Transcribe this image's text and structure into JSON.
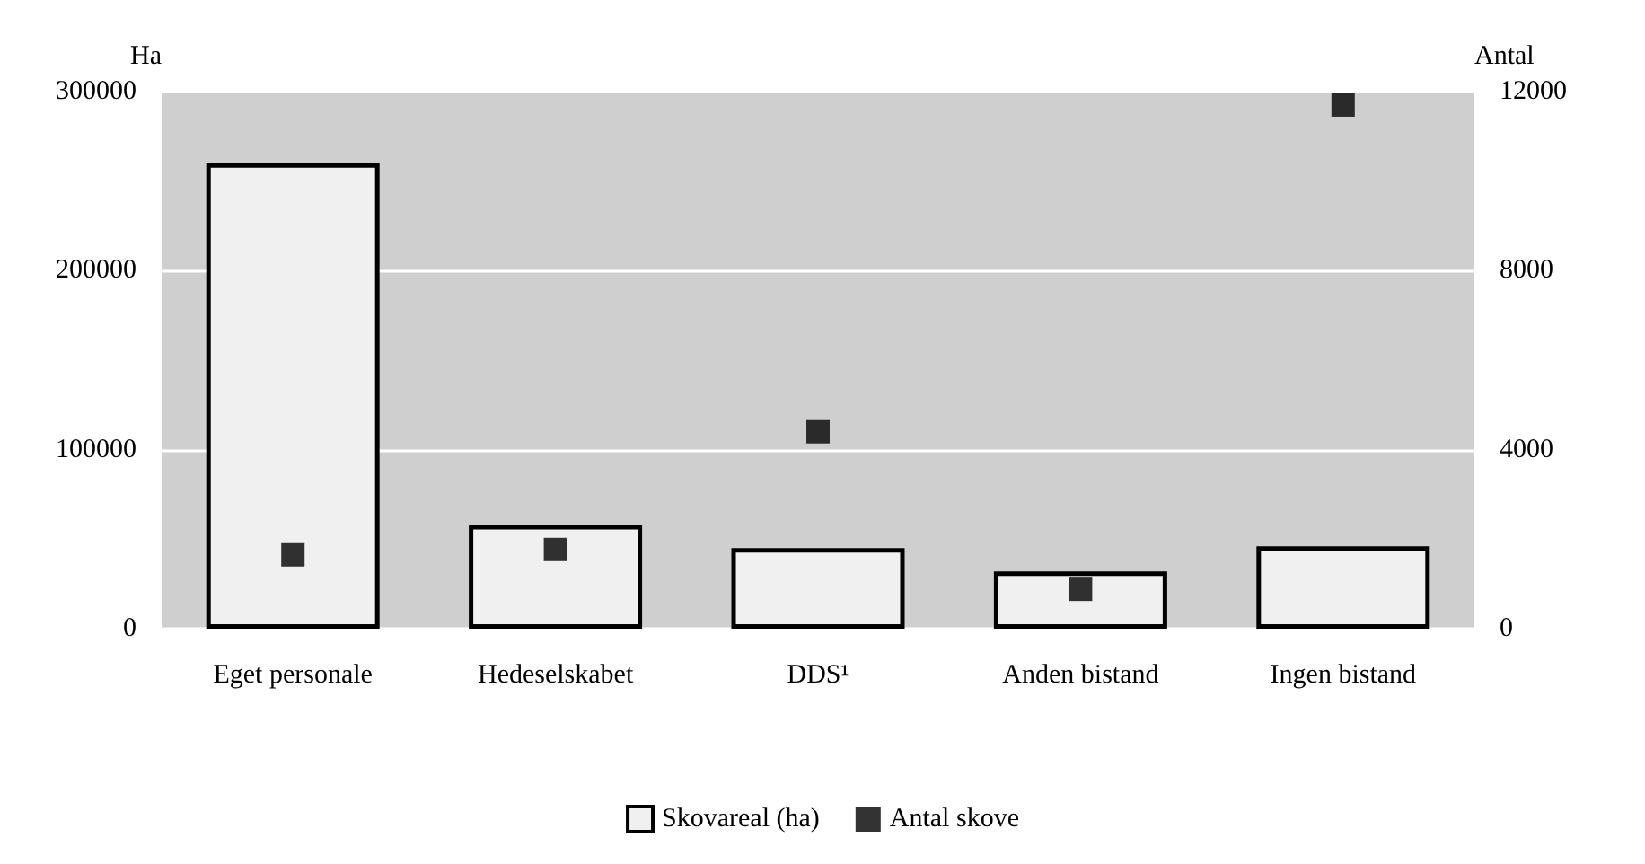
{
  "chart_data": {
    "type": "bar",
    "ylabel": "Ha",
    "y2label": "Antal",
    "categories": [
      "Eget personale",
      "Hedeselskabet",
      "DDS¹",
      "Anden bistand",
      "Ingen bistand"
    ],
    "series": [
      {
        "name": "Skovareal (ha)",
        "color": "#f0f0f0",
        "values": [
          260000,
          58000,
          45000,
          32000,
          46000
        ]
      },
      {
        "name": "Antal skove",
        "type": "scatter",
        "axis": "y2",
        "color": "#000000",
        "values": [
          1650,
          1770,
          4400,
          880,
          11700
        ]
      }
    ],
    "ylim": [
      0,
      300000
    ],
    "yticks": [
      0,
      100000,
      200000,
      300000
    ],
    "y2lim": [
      0,
      12000
    ],
    "y2ticks": [
      0,
      4000,
      8000,
      12000
    ],
    "grid": "y",
    "legend": "bottom",
    "marker": "square"
  }
}
